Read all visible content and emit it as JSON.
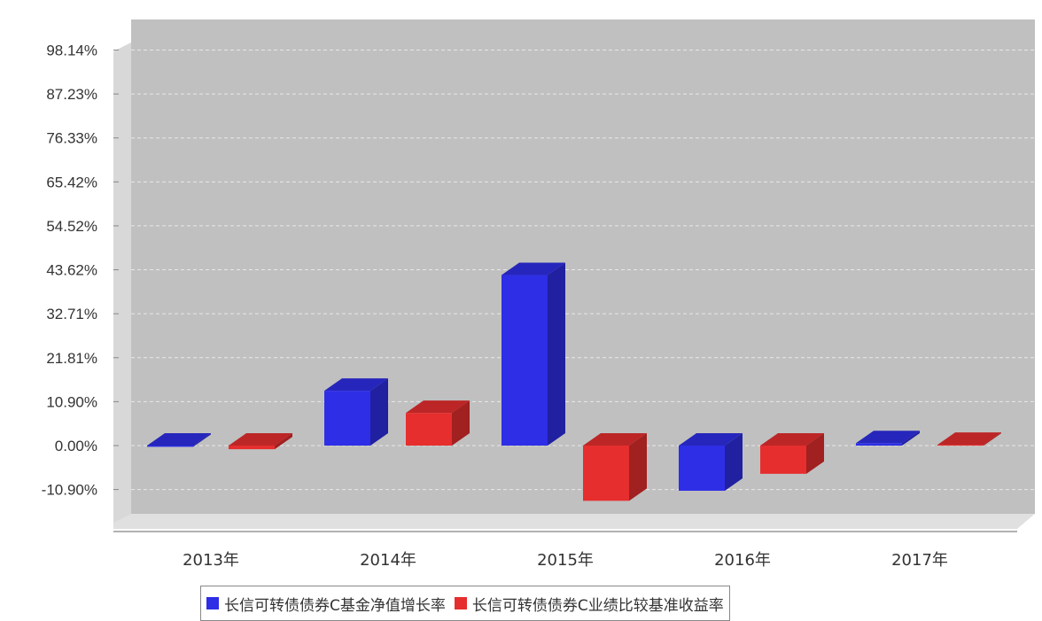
{
  "chart_data": {
    "type": "bar",
    "categories": [
      "2013年",
      "2014年",
      "2015年",
      "2016年",
      "2017年"
    ],
    "series": [
      {
        "name": "长信可转债债券C基金净值增长率",
        "color": "#2e2ee6",
        "values": [
          -0.3,
          13.6,
          42.3,
          -11.2,
          0.6
        ]
      },
      {
        "name": "长信可转债债券C业绩比较基准收益率",
        "color": "#e62e2e",
        "values": [
          -0.9,
          8.1,
          -13.7,
          -7.0,
          0.2
        ]
      }
    ],
    "y_ticks": [
      "98.14%",
      "87.23%",
      "76.33%",
      "65.42%",
      "54.52%",
      "43.62%",
      "32.71%",
      "21.81%",
      "10.90%",
      "0.00%",
      "-10.90%"
    ],
    "y_tick_values": [
      98.14,
      87.23,
      76.33,
      65.42,
      54.52,
      43.62,
      32.71,
      21.81,
      10.9,
      0.0,
      -10.9
    ],
    "ylim": [
      -16.0,
      103.0
    ],
    "grid": true,
    "legend_position": "bottom",
    "background": "#c0c0c0"
  }
}
